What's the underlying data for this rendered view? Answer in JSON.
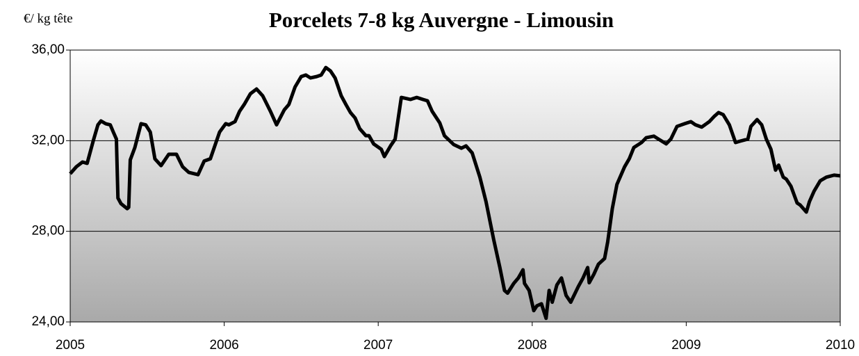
{
  "chart_data": {
    "type": "line",
    "title": "Porcelets 7-8 kg Auvergne - Limousin",
    "y_label": "€/ kg tête",
    "x": [
      2005.0,
      2005.04,
      2005.08,
      2005.11,
      2005.15,
      2005.18,
      2005.2,
      2005.23,
      2005.26,
      2005.28,
      2005.3,
      2005.31,
      2005.33,
      2005.37,
      2005.38,
      2005.39,
      2005.42,
      2005.46,
      2005.49,
      2005.52,
      2005.55,
      2005.59,
      2005.64,
      2005.69,
      2005.73,
      2005.77,
      2005.83,
      2005.87,
      2005.91,
      2005.97,
      2006.01,
      2006.03,
      2006.07,
      2006.1,
      2006.13,
      2006.17,
      2006.21,
      2006.25,
      2006.3,
      2006.34,
      2006.39,
      2006.42,
      2006.46,
      2006.5,
      2006.53,
      2006.56,
      2006.6,
      2006.63,
      2006.66,
      2006.69,
      2006.72,
      2006.76,
      2006.79,
      2006.82,
      2006.85,
      2006.88,
      2006.92,
      2006.94,
      2006.97,
      2007.02,
      2007.04,
      2007.08,
      2007.11,
      2007.15,
      2007.21,
      2007.25,
      2007.29,
      2007.32,
      2007.35,
      2007.4,
      2007.43,
      2007.49,
      2007.54,
      2007.57,
      2007.61,
      2007.66,
      2007.7,
      2007.75,
      2007.79,
      2007.82,
      2007.84,
      2007.88,
      2007.91,
      2007.94,
      2007.95,
      2007.98,
      2008.01,
      2008.03,
      2008.06,
      2008.09,
      2008.11,
      2008.13,
      2008.16,
      2008.19,
      2008.22,
      2008.25,
      2008.3,
      2008.33,
      2008.36,
      2008.37,
      2008.4,
      2008.43,
      2008.47,
      2008.49,
      2008.52,
      2008.55,
      2008.6,
      2008.63,
      2008.66,
      2008.71,
      2008.74,
      2008.79,
      2008.82,
      2008.87,
      2008.9,
      2008.94,
      2008.99,
      2009.03,
      2009.06,
      2009.1,
      2009.15,
      2009.18,
      2009.21,
      2009.24,
      2009.28,
      2009.32,
      2009.35,
      2009.4,
      2009.42,
      2009.46,
      2009.49,
      2009.52,
      2009.55,
      2009.58,
      2009.6,
      2009.63,
      2009.65,
      2009.68,
      2009.72,
      2009.74,
      2009.78,
      2009.8,
      2009.83,
      2009.87,
      2009.91,
      2009.96,
      2010.0
    ],
    "series": [
      {
        "name": "Porcelets 7-8 kg",
        "color": "#000000",
        "values": [
          30.54,
          30.85,
          31.06,
          31.0,
          32.0,
          32.7,
          32.87,
          32.75,
          32.7,
          32.38,
          32.07,
          29.47,
          29.22,
          29.0,
          29.06,
          31.15,
          31.7,
          32.75,
          32.7,
          32.38,
          31.2,
          30.9,
          31.4,
          31.4,
          30.85,
          30.6,
          30.5,
          31.1,
          31.2,
          32.38,
          32.75,
          32.7,
          32.84,
          33.3,
          33.6,
          34.07,
          34.28,
          33.98,
          33.3,
          32.7,
          33.36,
          33.6,
          34.37,
          34.83,
          34.9,
          34.77,
          34.83,
          34.9,
          35.23,
          35.08,
          34.77,
          33.98,
          33.6,
          33.24,
          33.0,
          32.53,
          32.22,
          32.22,
          31.86,
          31.62,
          31.3,
          31.77,
          32.07,
          33.91,
          33.82,
          33.91,
          33.82,
          33.76,
          33.3,
          32.78,
          32.22,
          31.83,
          31.67,
          31.77,
          31.46,
          30.39,
          29.31,
          27.63,
          26.4,
          25.39,
          25.27,
          25.7,
          25.94,
          26.3,
          25.7,
          25.39,
          24.5,
          24.71,
          24.8,
          24.16,
          25.39,
          24.87,
          25.63,
          25.94,
          25.17,
          24.87,
          25.57,
          25.94,
          26.4,
          25.73,
          26.1,
          26.55,
          26.8,
          27.53,
          29.0,
          30.07,
          30.85,
          31.2,
          31.7,
          31.92,
          32.13,
          32.2,
          32.07,
          31.86,
          32.07,
          32.63,
          32.75,
          32.84,
          32.7,
          32.6,
          32.84,
          33.06,
          33.24,
          33.15,
          32.7,
          31.92,
          31.98,
          32.07,
          32.63,
          32.93,
          32.7,
          32.07,
          31.62,
          30.7,
          30.92,
          30.39,
          30.3,
          29.99,
          29.25,
          29.16,
          28.85,
          29.31,
          29.77,
          30.23,
          30.39,
          30.48,
          30.45
        ]
      }
    ],
    "xlim": [
      2005,
      2010
    ],
    "xticks": [
      2005,
      2006,
      2007,
      2008,
      2009,
      2010
    ],
    "ylim": [
      24,
      36
    ],
    "yticks": [
      {
        "value": 24,
        "label": "24,00"
      },
      {
        "value": 28,
        "label": "28,00"
      },
      {
        "value": 32,
        "label": "32,00"
      },
      {
        "value": 36,
        "label": "36,00"
      }
    ],
    "grid": true
  }
}
